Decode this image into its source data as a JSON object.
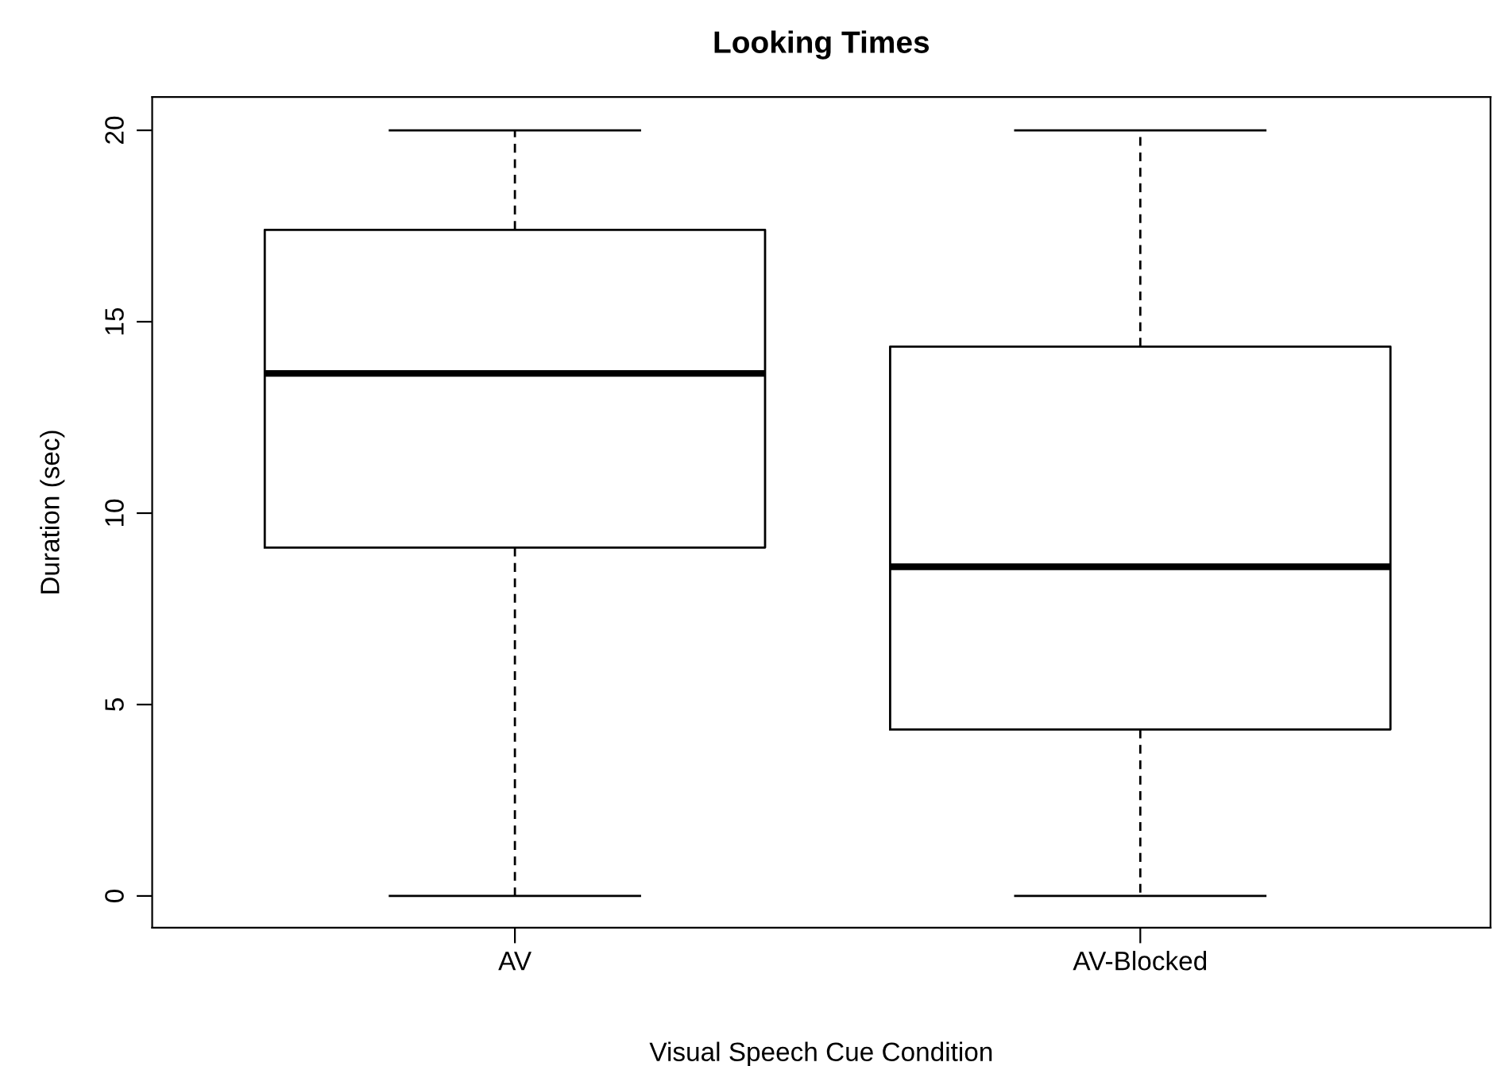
{
  "chart_data": {
    "type": "box",
    "title": "Looking Times",
    "xlabel": "Visual Speech Cue Condition",
    "ylabel": "Duration (sec)",
    "categories": [
      "AV",
      "AV-Blocked"
    ],
    "boxes": [
      {
        "low": 0,
        "q1": 9.1,
        "median": 13.65,
        "q3": 17.4,
        "high": 20
      },
      {
        "low": 0,
        "q1": 4.35,
        "median": 8.6,
        "q3": 14.35,
        "high": 20
      }
    ],
    "ylim": [
      -0.83,
      20.87
    ],
    "yticks": [
      0,
      5,
      10,
      15,
      20
    ],
    "grid": false
  }
}
